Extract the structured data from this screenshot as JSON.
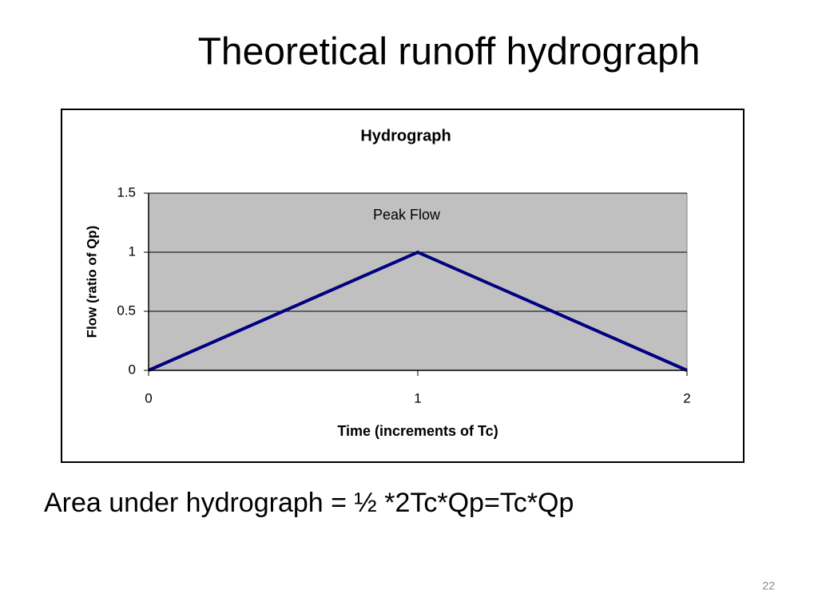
{
  "slide": {
    "title": "Theoretical runoff hydrograph",
    "caption": "Area under hydrograph = ½ *2Tc*Qp=Tc*Qp",
    "page_number": 22
  },
  "chart_data": {
    "type": "line",
    "title": "Hydrograph",
    "x_label": "Time (increments of Tc)",
    "y_label": "Flow (ratio of Qp)",
    "annotation": "Peak Flow",
    "x": [
      0,
      1,
      2
    ],
    "series": [
      {
        "color": "#000080",
        "values": [
          0,
          1,
          0
        ]
      }
    ],
    "xlim": [
      0,
      2
    ],
    "xticks": [
      0,
      1,
      2
    ],
    "ylim": [
      0,
      1.5
    ],
    "yticks": [
      0,
      0.5,
      1,
      1.5
    ],
    "grid": true,
    "plot_background": "#c0c0c0"
  }
}
